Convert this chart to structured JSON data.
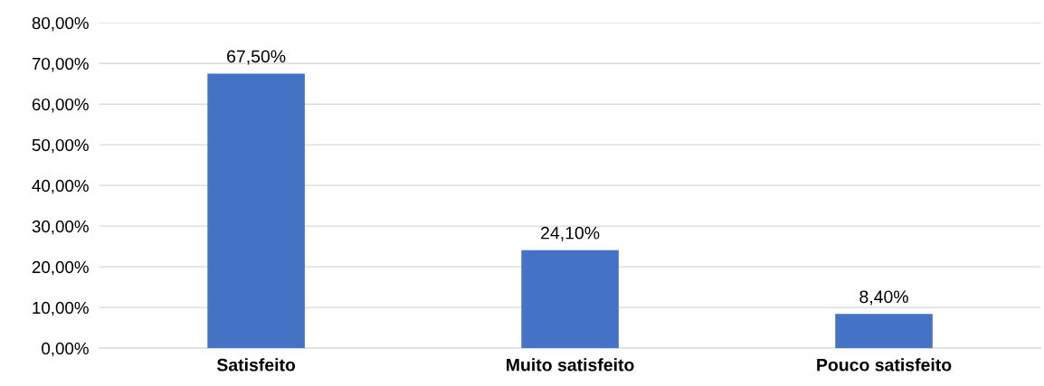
{
  "chart_data": {
    "type": "bar",
    "categories": [
      "Satisfeito",
      "Muito satisfeito",
      "Pouco satisfeito"
    ],
    "values": [
      67.5,
      24.1,
      8.4
    ],
    "value_labels": [
      "67,50%",
      "24,10%",
      "8,40%"
    ],
    "color": "#4472c4",
    "ylim": [
      0,
      80
    ],
    "yticks": [
      {
        "value": 0,
        "label": "0,00%"
      },
      {
        "value": 10,
        "label": "10,00%"
      },
      {
        "value": 20,
        "label": "20,00%"
      },
      {
        "value": 30,
        "label": "30,00%"
      },
      {
        "value": 40,
        "label": "40,00%"
      },
      {
        "value": 50,
        "label": "50,00%"
      },
      {
        "value": 60,
        "label": "60,00%"
      },
      {
        "value": 70,
        "label": "70,00%"
      },
      {
        "value": 80,
        "label": "80,00%"
      }
    ],
    "grid": "y",
    "legend": false
  }
}
